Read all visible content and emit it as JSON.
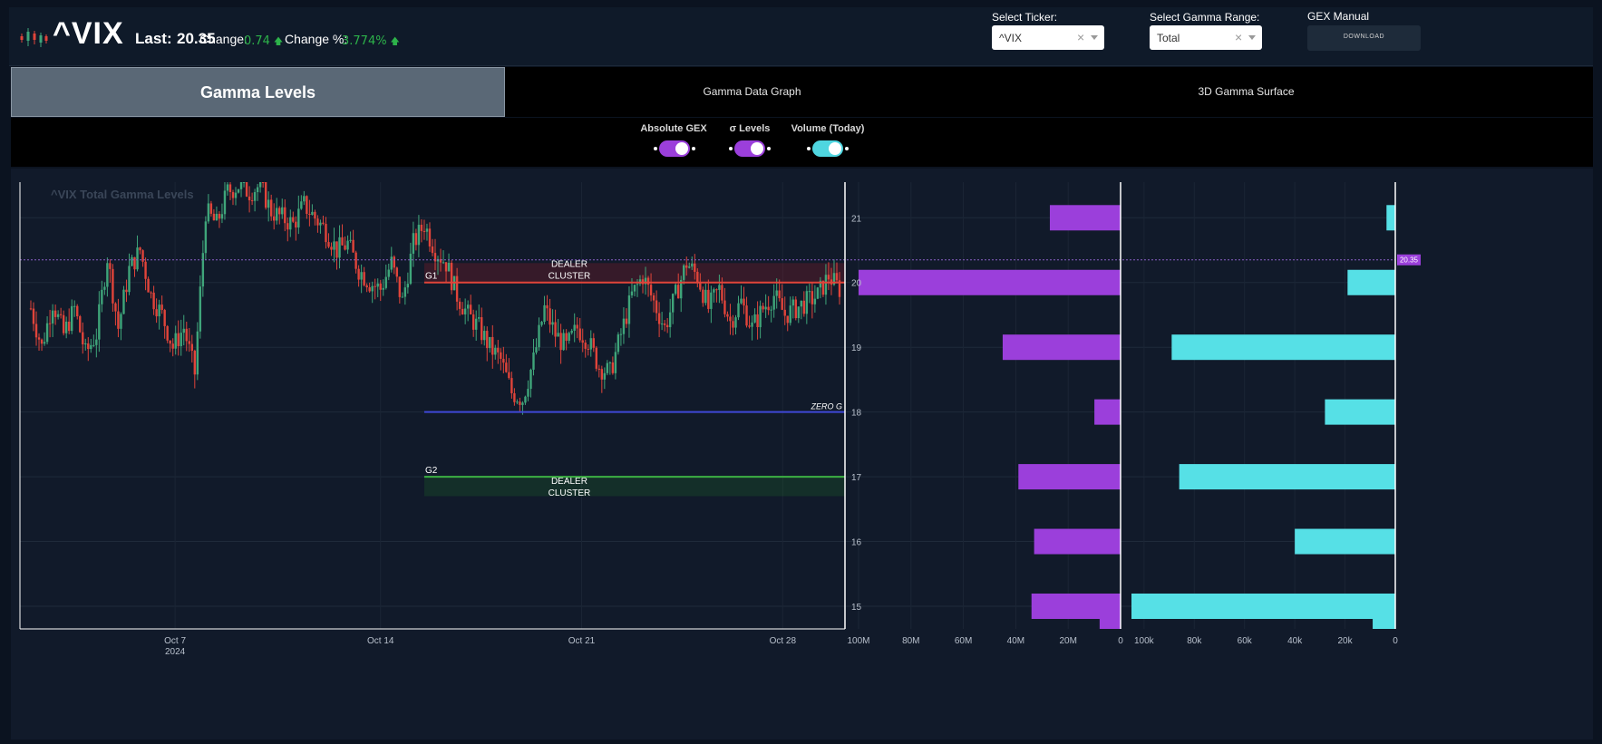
{
  "header": {
    "ticker": "^VIX",
    "last_label": "Last:",
    "last_value": "20.35",
    "change_label": "Change:",
    "change_value": "0.74",
    "change_pct_label": "Change %:",
    "change_pct_value": "3.774%",
    "up_arrow": "🡅"
  },
  "selectors": {
    "ticker_label": "Select Ticker:",
    "ticker_value": "^VIX",
    "range_label": "Select Gamma Range:",
    "range_value": "Total",
    "clear_glyph": "×",
    "manual_label": "GEX Manual",
    "download_label": "DOWNLOAD"
  },
  "tabs": [
    {
      "label": "Gamma Levels",
      "active": true
    },
    {
      "label": "Gamma Data Graph",
      "active": false
    },
    {
      "label": "3D Gamma Surface",
      "active": false
    }
  ],
  "toggles": [
    {
      "label": "Absolute GEX",
      "on": true,
      "color": "#9b3fdb"
    },
    {
      "label": "σ Levels",
      "on": true,
      "color": "#9b3fdb"
    },
    {
      "label": "Volume (Today)",
      "on": true,
      "color": "#4fd6e0"
    }
  ],
  "colors": {
    "gex_bar": "#9b3fdb",
    "volume_bar": "#56e0e6",
    "candle_up": "#3fa57a",
    "candle_down": "#e0443a",
    "g1_line": "#e0443a",
    "g2_line": "#3cb043",
    "zero_g_line": "#3f48d6",
    "last_price_tag": "#9b3fdb"
  },
  "chart_data": {
    "type": "candlestick",
    "title": "^VIX Total Gamma Levels",
    "x_ticks": [
      "Oct 7",
      "Oct 14",
      "Oct 21",
      "Oct 28"
    ],
    "x_sub_label": "2024",
    "y_ticks": [
      15,
      16,
      17,
      18,
      19,
      20,
      21
    ],
    "ylim": [
      14.65,
      21.55
    ],
    "last_price": 20.35,
    "last_price_label": "20.35",
    "levels": [
      {
        "name": "G1",
        "value": 20.0,
        "label": "G1",
        "zone": "DEALER CLUSTER",
        "zone_to": 20.3
      },
      {
        "name": "ZERO G",
        "value": 18.0,
        "label": "ZERO G"
      },
      {
        "name": "G2",
        "value": 17.0,
        "label": "G2",
        "zone": "DEALER CLUSTER",
        "zone_to": 16.7
      }
    ],
    "zone_label_lines": [
      "DEALER",
      "CLUSTER"
    ],
    "price_path": [
      [
        0,
        19.6
      ],
      [
        2,
        19.0
      ],
      [
        4,
        19.7
      ],
      [
        6,
        19.2
      ],
      [
        8,
        19.6
      ],
      [
        10,
        18.9
      ],
      [
        12,
        19.2
      ],
      [
        14,
        20.4
      ],
      [
        16,
        19.3
      ],
      [
        18,
        20.2
      ],
      [
        20,
        20.5
      ],
      [
        22,
        19.8
      ],
      [
        24,
        19.5
      ],
      [
        26,
        19.0
      ],
      [
        28,
        19.3
      ],
      [
        30,
        18.6
      ],
      [
        32,
        21.1
      ],
      [
        34,
        20.9
      ],
      [
        36,
        21.4
      ],
      [
        38,
        21.5
      ],
      [
        40,
        21.4
      ],
      [
        42,
        21.5
      ],
      [
        44,
        21.1
      ],
      [
        46,
        21.0
      ],
      [
        48,
        20.9
      ],
      [
        50,
        21.2
      ],
      [
        52,
        21.0
      ],
      [
        54,
        20.8
      ],
      [
        56,
        20.5
      ],
      [
        58,
        20.6
      ],
      [
        60,
        20.2
      ],
      [
        62,
        20.0
      ],
      [
        64,
        19.9
      ],
      [
        66,
        20.3
      ],
      [
        68,
        19.7
      ],
      [
        70,
        20.6
      ],
      [
        72,
        20.9
      ],
      [
        74,
        20.5
      ],
      [
        76,
        20.3
      ],
      [
        78,
        19.8
      ],
      [
        80,
        19.5
      ],
      [
        82,
        19.3
      ],
      [
        84,
        19.0
      ],
      [
        86,
        18.8
      ],
      [
        88,
        18.3
      ],
      [
        90,
        18.2
      ],
      [
        92,
        18.8
      ],
      [
        94,
        19.6
      ],
      [
        96,
        19.2
      ],
      [
        98,
        19.0
      ],
      [
        100,
        19.3
      ],
      [
        102,
        19.1
      ],
      [
        104,
        18.7
      ],
      [
        106,
        18.6
      ],
      [
        108,
        19.2
      ],
      [
        110,
        19.8
      ],
      [
        112,
        20.1
      ],
      [
        114,
        19.7
      ],
      [
        116,
        19.3
      ],
      [
        118,
        19.8
      ],
      [
        120,
        20.3
      ],
      [
        122,
        20.1
      ],
      [
        124,
        19.6
      ],
      [
        126,
        19.9
      ],
      [
        128,
        19.4
      ],
      [
        130,
        19.7
      ],
      [
        132,
        19.3
      ],
      [
        134,
        19.6
      ],
      [
        136,
        19.8
      ],
      [
        138,
        19.5
      ],
      [
        140,
        19.6
      ],
      [
        142,
        19.7
      ],
      [
        144,
        19.8
      ],
      [
        146,
        20.1
      ],
      [
        148,
        19.9
      ]
    ],
    "x_index_range": [
      0,
      148
    ],
    "gex_bars": {
      "xlim": [
        0,
        100000000
      ],
      "x_ticks": [
        "100M",
        "80M",
        "60M",
        "40M",
        "20M",
        "0"
      ],
      "tick_values": [
        100000000,
        80000000,
        60000000,
        40000000,
        20000000,
        0
      ],
      "values": [
        {
          "strike": 21,
          "value": 27000000
        },
        {
          "strike": 20,
          "value": 107000000
        },
        {
          "strike": 19,
          "value": 45000000
        },
        {
          "strike": 18,
          "value": 10000000
        },
        {
          "strike": 17,
          "value": 39000000
        },
        {
          "strike": 16,
          "value": 33000000
        },
        {
          "strike": 15,
          "value": 34000000
        },
        {
          "strike": 14.65,
          "value": 8000000
        }
      ]
    },
    "volume_bars": {
      "xlim": [
        0,
        105000
      ],
      "x_ticks": [
        "100k",
        "80k",
        "60k",
        "40k",
        "20k",
        "0"
      ],
      "tick_values": [
        100000,
        80000,
        60000,
        40000,
        20000,
        0
      ],
      "values": [
        {
          "strike": 21,
          "value": 3500
        },
        {
          "strike": 20,
          "value": 19000
        },
        {
          "strike": 19,
          "value": 89000
        },
        {
          "strike": 18,
          "value": 28000
        },
        {
          "strike": 17,
          "value": 86000
        },
        {
          "strike": 16,
          "value": 40000
        },
        {
          "strike": 15,
          "value": 106000
        },
        {
          "strike": 14.65,
          "value": 9000
        }
      ]
    }
  }
}
